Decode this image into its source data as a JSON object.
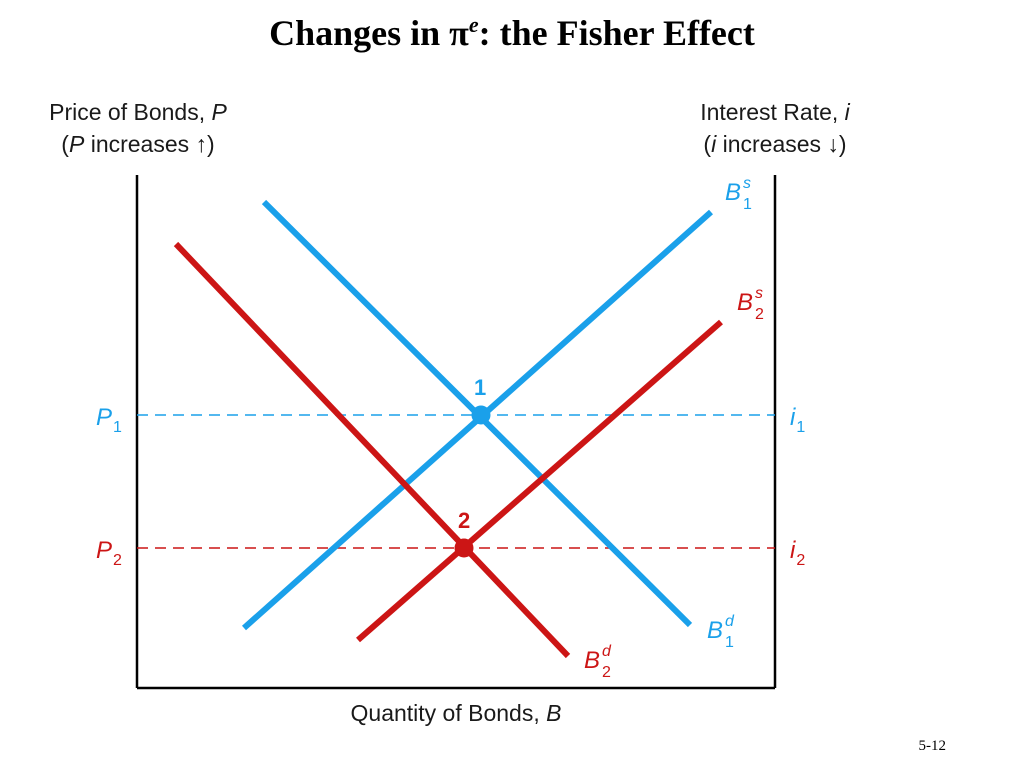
{
  "title": {
    "prefix": "Changes in π",
    "superscript": "e",
    "suffix": ": the Fisher Effect"
  },
  "axes": {
    "left_title_line1_prefix": "Price of Bonds, ",
    "left_title_line1_var": "P",
    "left_title_line2_open": "(",
    "left_title_line2_var": "P",
    "left_title_line2_rest": " increases ↑)",
    "right_title_line1_prefix": "Interest Rate, ",
    "right_title_line1_var": "i",
    "right_title_line2_open": "(",
    "right_title_line2_var": "i",
    "right_title_line2_rest": " increases ↓)",
    "x_title_prefix": "Quantity of Bonds, ",
    "x_title_var": "B"
  },
  "levels": {
    "p1_main": "P",
    "p1_sub": "1",
    "p2_main": "P",
    "p2_sub": "2",
    "i1_main": "i",
    "i1_sub": "1",
    "i2_main": "i",
    "i2_sub": "2"
  },
  "curves": {
    "b1s_main": "B",
    "b1s_sup": "s",
    "b1s_sub": "1",
    "b2s_main": "B",
    "b2s_sup": "s",
    "b2s_sub": "2",
    "b1d_main": "B",
    "b1d_sup": "d",
    "b1d_sub": "1",
    "b2d_main": "B",
    "b2d_sup": "d",
    "b2d_sub": "2"
  },
  "equilibria": {
    "point1_label": "1",
    "point2_label": "2"
  },
  "colors": {
    "initial": "#1aa0ea",
    "new": "#cc1515",
    "axis": "#000000"
  },
  "slide_number": "5-12"
}
